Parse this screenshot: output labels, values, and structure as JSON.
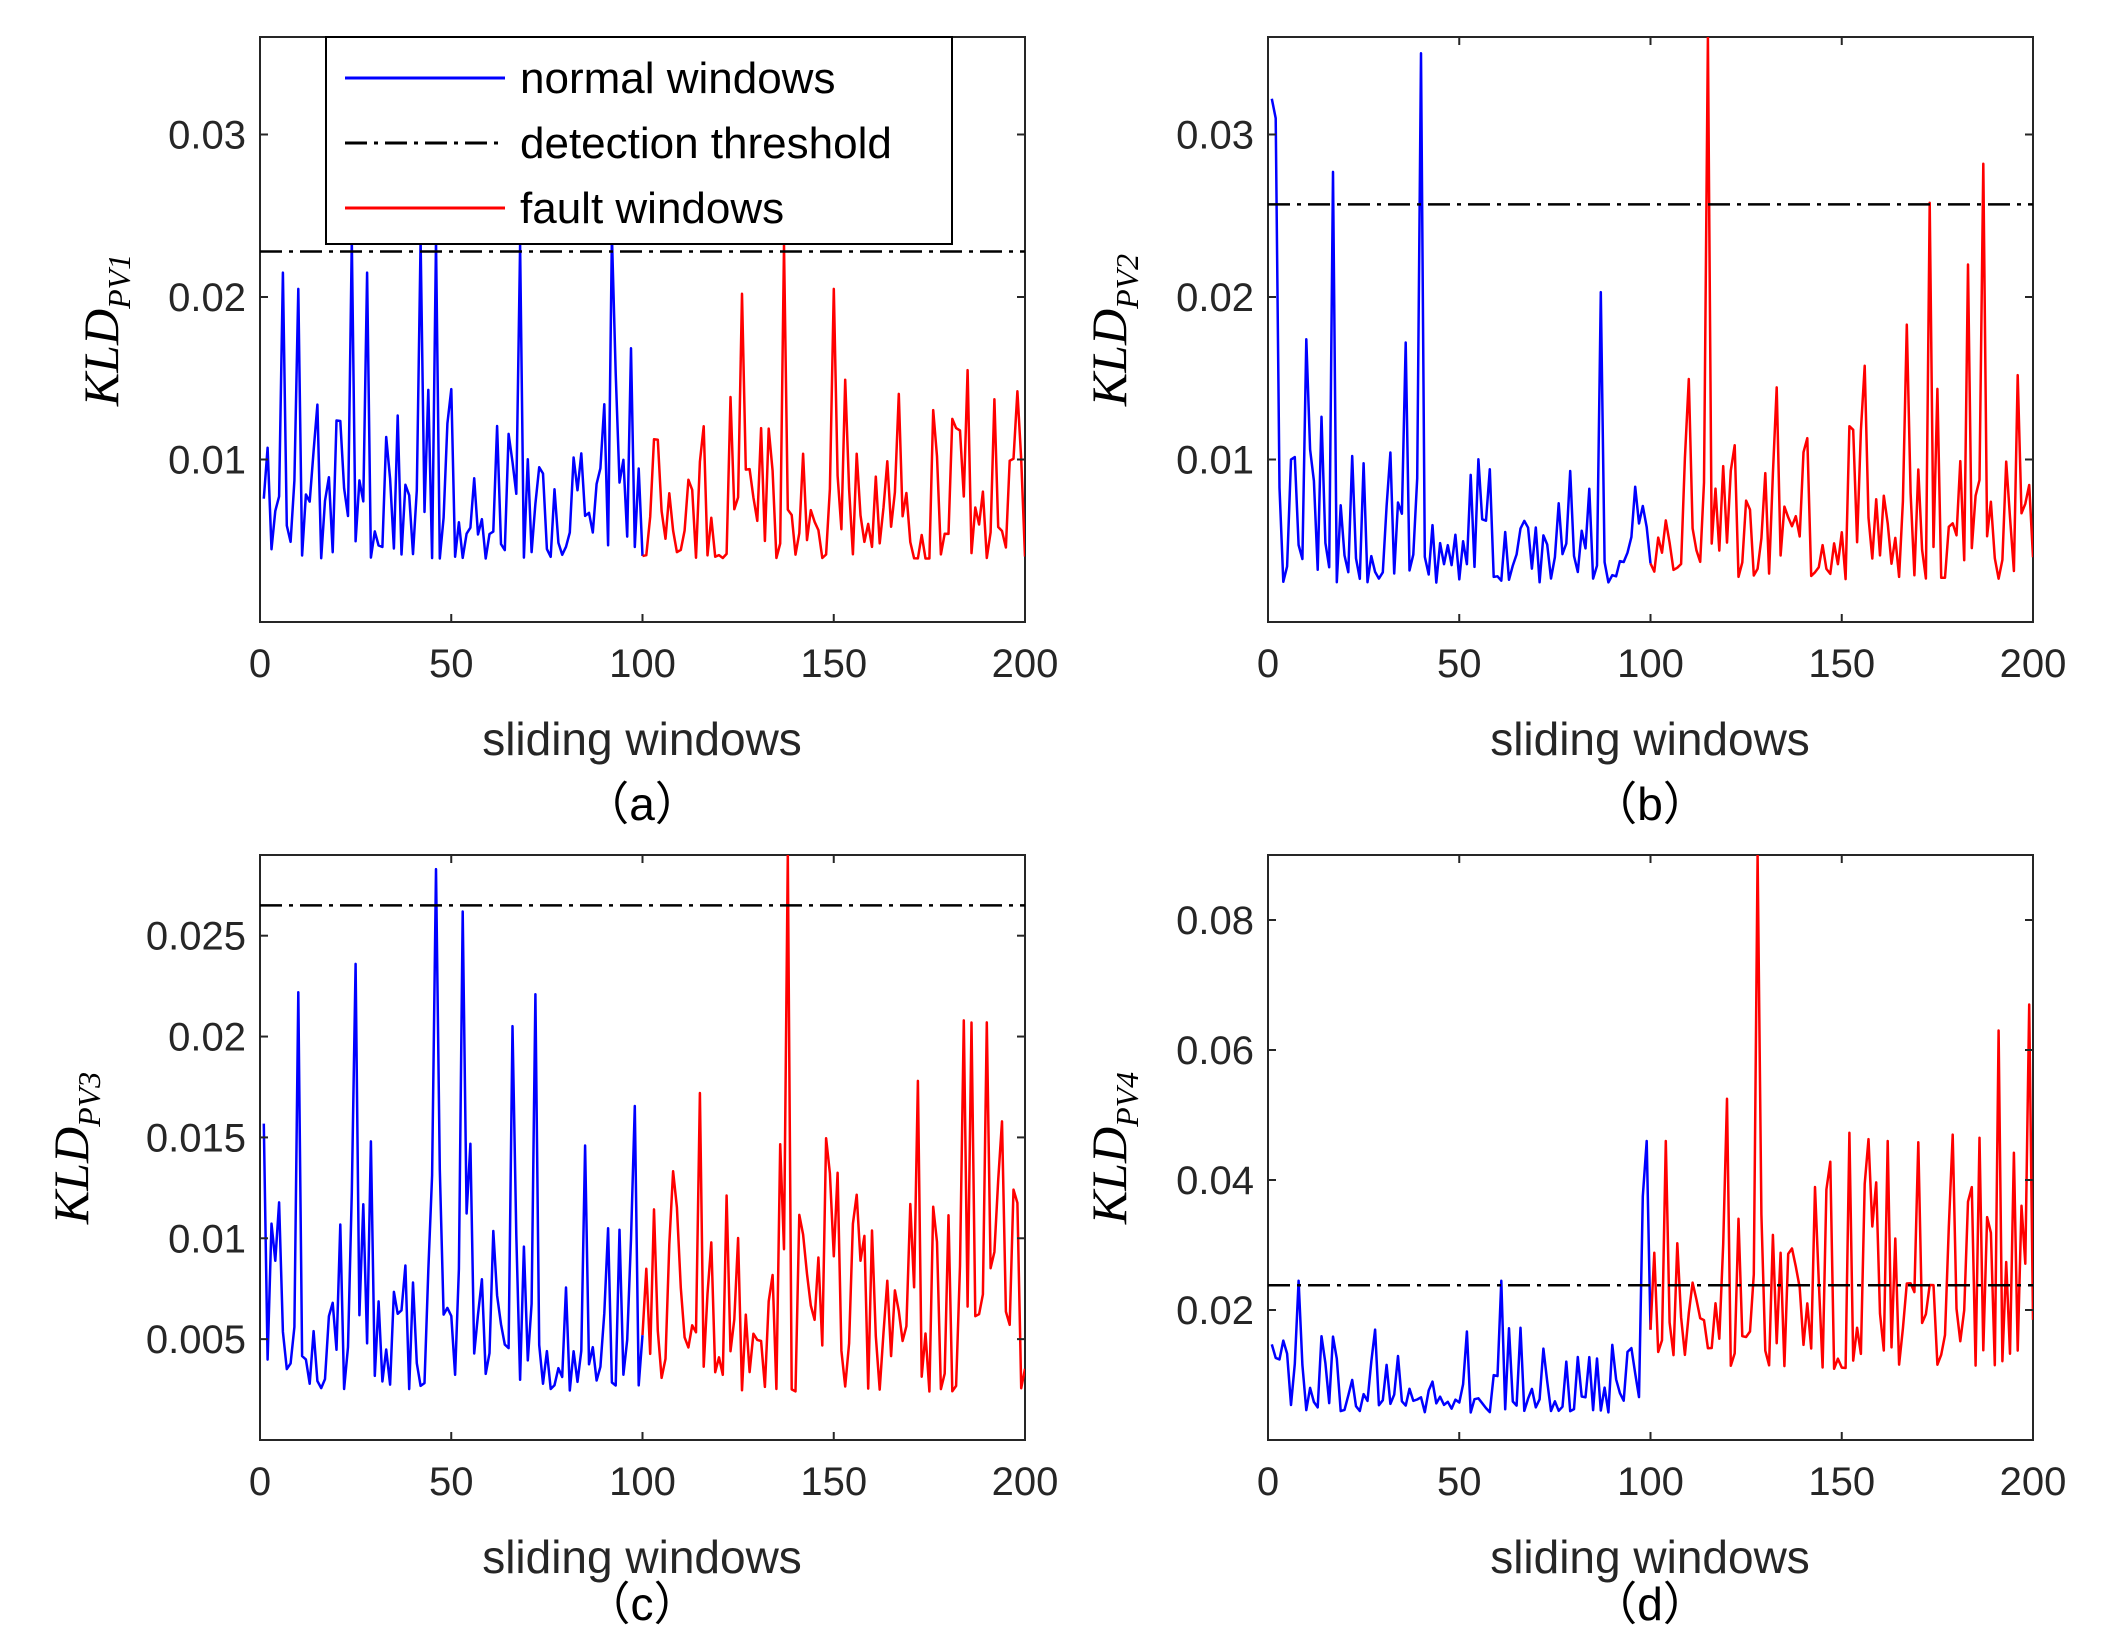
{
  "colors": {
    "normal": "#0000ff",
    "fault": "#ff0000",
    "threshold": "#000000",
    "axis": "#262626"
  },
  "legend": {
    "normal_label": "normal windows",
    "threshold_label": "detection threshold",
    "fault_label": "fault windows"
  },
  "chart_data": [
    {
      "type": "line",
      "caption": "（a）",
      "xlabel": "sliding windows",
      "ylabel_main": "KLD",
      "ylabel_sub": "PV1",
      "xlim": [
        0,
        200
      ],
      "ylim": [
        0.0,
        0.036
      ],
      "xticks": [
        0,
        50,
        100,
        150,
        200
      ],
      "xtick_labels": [
        "0",
        "50",
        "100",
        "150",
        "200"
      ],
      "yticks": [
        0.01,
        0.02,
        0.03
      ],
      "ytick_labels": [
        "0.01",
        "0.02",
        "0.03"
      ],
      "threshold": 0.0228,
      "seed": 11,
      "baseline": 0.0065,
      "spread": 0.0085,
      "fault_boost": 1.0,
      "normal_peaks": [
        [
          24,
          0.0235
        ],
        [
          28,
          0.0215
        ],
        [
          42,
          0.0235
        ],
        [
          46,
          0.0235
        ],
        [
          68,
          0.0232
        ],
        [
          92,
          0.0238
        ],
        [
          6,
          0.0215
        ],
        [
          10,
          0.0205
        ]
      ],
      "fault_peaks": [
        [
          126,
          0.0202
        ],
        [
          137,
          0.0232
        ],
        [
          150,
          0.0205
        ],
        [
          185,
          0.0155
        ],
        [
          198,
          0.0142
        ]
      ],
      "series": [
        {
          "name": "normal windows",
          "range": [
            1,
            100
          ]
        },
        {
          "name": "fault windows",
          "range": [
            100,
            200
          ]
        }
      ]
    },
    {
      "type": "line",
      "caption": "（b）",
      "xlabel": "sliding windows",
      "ylabel_main": "KLD",
      "ylabel_sub": "PV2",
      "xlim": [
        0,
        200
      ],
      "ylim": [
        0.0,
        0.036
      ],
      "xticks": [
        0,
        50,
        100,
        150,
        200
      ],
      "xtick_labels": [
        "0",
        "50",
        "100",
        "150",
        "200"
      ],
      "yticks": [
        0.01,
        0.02,
        0.03
      ],
      "ytick_labels": [
        "0.01",
        "0.02",
        "0.03"
      ],
      "threshold": 0.0257,
      "seed": 23,
      "baseline": 0.004,
      "spread": 0.0075,
      "fault_boost": 1.1,
      "normal_peaks": [
        [
          1,
          0.0322
        ],
        [
          2,
          0.031
        ],
        [
          17,
          0.0277
        ],
        [
          40,
          0.035
        ],
        [
          87,
          0.0203
        ],
        [
          36,
          0.0172
        ],
        [
          10,
          0.0174
        ]
      ],
      "fault_peaks": [
        [
          115,
          0.0365
        ],
        [
          173,
          0.0258
        ],
        [
          187,
          0.0282
        ],
        [
          183,
          0.022
        ],
        [
          167,
          0.0183
        ]
      ],
      "series": [
        {
          "name": "normal windows",
          "range": [
            1,
            100
          ]
        },
        {
          "name": "fault windows",
          "range": [
            100,
            200
          ]
        }
      ]
    },
    {
      "type": "line",
      "caption": "（c）",
      "xlabel": "sliding windows",
      "ylabel_main": "KLD",
      "ylabel_sub": "PV3",
      "xlim": [
        0,
        200
      ],
      "ylim": [
        0.0,
        0.029
      ],
      "xticks": [
        0,
        50,
        100,
        150,
        200
      ],
      "xtick_labels": [
        "0",
        "50",
        "100",
        "150",
        "200"
      ],
      "yticks": [
        0.005,
        0.01,
        0.015,
        0.02,
        0.025
      ],
      "ytick_labels": [
        "0.005",
        "0.01",
        "0.015",
        "0.02",
        "0.025"
      ],
      "threshold": 0.0265,
      "seed": 37,
      "baseline": 0.004,
      "spread": 0.0085,
      "fault_boost": 1.0,
      "normal_peaks": [
        [
          10,
          0.0222
        ],
        [
          25,
          0.0236
        ],
        [
          46,
          0.0283
        ],
        [
          53,
          0.0262
        ],
        [
          72,
          0.0221
        ],
        [
          85,
          0.0146
        ],
        [
          29,
          0.0148
        ]
      ],
      "fault_peaks": [
        [
          138,
          0.0295
        ],
        [
          115,
          0.0172
        ],
        [
          184,
          0.0208
        ],
        [
          190,
          0.0207
        ],
        [
          172,
          0.0178
        ]
      ],
      "series": [
        {
          "name": "normal windows",
          "range": [
            1,
            100
          ]
        },
        {
          "name": "fault windows",
          "range": [
            100,
            200
          ]
        }
      ]
    },
    {
      "type": "line",
      "caption": "（d）",
      "xlabel": "sliding windows",
      "ylabel_main": "KLD",
      "ylabel_sub": "PV4",
      "xlim": [
        0,
        200
      ],
      "ylim": [
        0.0,
        0.09
      ],
      "xticks": [
        0,
        50,
        100,
        150,
        200
      ],
      "xtick_labels": [
        "0",
        "50",
        "100",
        "150",
        "200"
      ],
      "yticks": [
        0.02,
        0.04,
        0.06,
        0.08
      ],
      "ytick_labels": [
        "0.02",
        "0.04",
        "0.06",
        "0.08"
      ],
      "threshold": 0.0238,
      "seed": 53,
      "baseline": 0.007,
      "spread": 0.01,
      "fault_boost": 2.6,
      "normal_peaks": [
        [
          8,
          0.0245
        ],
        [
          61,
          0.0245
        ],
        [
          98,
          0.0375
        ],
        [
          99,
          0.046
        ]
      ],
      "fault_peaks": [
        [
          128,
          0.09
        ],
        [
          120,
          0.0525
        ],
        [
          191,
          0.063
        ],
        [
          199,
          0.067
        ],
        [
          104,
          0.046
        ],
        [
          162,
          0.046
        ]
      ],
      "series": [
        {
          "name": "normal windows",
          "range": [
            1,
            100
          ]
        },
        {
          "name": "fault windows",
          "range": [
            100,
            200
          ]
        }
      ]
    }
  ]
}
